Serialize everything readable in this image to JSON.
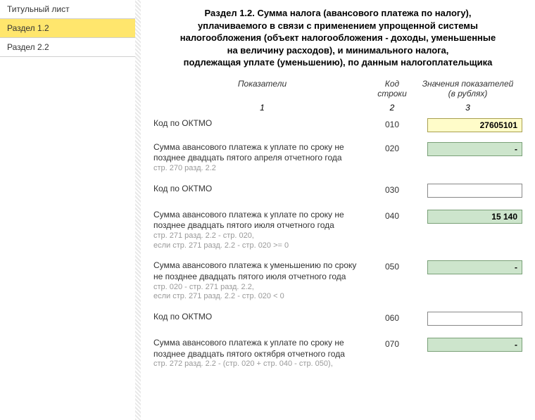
{
  "sidebar": {
    "items": [
      {
        "label": "Титульный лист",
        "active": false
      },
      {
        "label": "Раздел 1.2",
        "active": true
      },
      {
        "label": "Раздел 2.2",
        "active": false
      }
    ]
  },
  "header": {
    "title_l1": "Раздел 1.2. Сумма налога (авансового платежа по налогу),",
    "title_l2": "уплачиваемого в связи с применением упрощенной системы",
    "title_l3": "налогообложения (объект налогообложения - доходы, уменьшенные",
    "title_l4": "на величину расходов), и минимального налога,",
    "title_l5": "подлежащая уплате (уменьшению), по данным налогоплательщика"
  },
  "columns": {
    "indicator": "Показатели",
    "code_l1": "Код",
    "code_l2": "строки",
    "value_l1": "Значения показателей",
    "value_l2": "(в рублях)",
    "n1": "1",
    "n2": "2",
    "n3": "3"
  },
  "rows": [
    {
      "label": "Код по ОКТМО",
      "hint": "",
      "code": "010",
      "value": "27605101",
      "field_style": "yellow"
    },
    {
      "label": "Сумма авансового платежа к уплате по сроку не позднее двадцать пятого апреля отчетного года",
      "hint": "стр. 270 разд. 2.2",
      "code": "020",
      "value": "-",
      "field_style": "green"
    },
    {
      "label": "Код по ОКТМО",
      "hint": "",
      "code": "030",
      "value": "",
      "field_style": "white"
    },
    {
      "label": "Сумма  авансового платежа к уплате по сроку не позднее двадцать пятого июля отчетного года",
      "hint": "стр. 271 разд. 2.2 - стр. 020,\nесли стр. 271 разд. 2.2 - стр. 020 >= 0",
      "code": "040",
      "value": "15 140",
      "field_style": "green"
    },
    {
      "label": "Сумма авансового платежа к уменьшению по сроку не позднее двадцать пятого июля отчетного года",
      "hint": "стр. 020 - стр. 271 разд. 2.2,\nесли стр. 271 разд. 2.2 - стр. 020 < 0",
      "code": "050",
      "value": "-",
      "field_style": "green"
    },
    {
      "label": "Код по ОКТМО",
      "hint": "",
      "code": "060",
      "value": "",
      "field_style": "white"
    },
    {
      "label": "Сумма авансового платежа к уплате по сроку не позднее двадцать пятого октября отчетного года",
      "hint": "стр. 272 разд. 2.2 - (стр. 020 + стр. 040 - стр. 050),",
      "code": "070",
      "value": "-",
      "field_style": "green"
    }
  ]
}
